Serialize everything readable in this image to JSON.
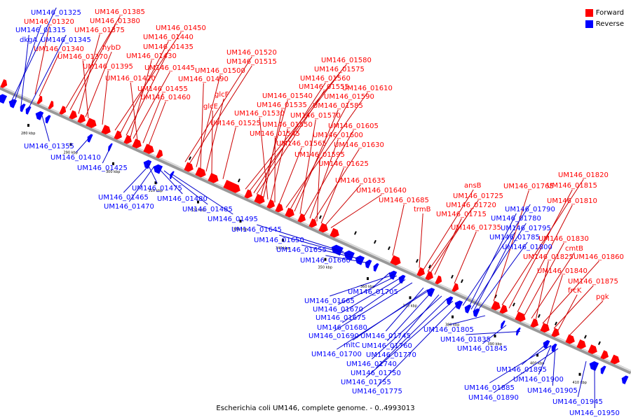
{
  "caption": "Escherichia coli UM146, complete genome. - 0..4993013",
  "legend": {
    "forward_label": "Forward",
    "reverse_label": "Reverse",
    "forward_color": "#ff0000",
    "reverse_color": "#0000ff"
  },
  "colors": {
    "forward_line": "#cc0000",
    "reverse_line": "#0000cc",
    "backbone": "#999999"
  },
  "axis": {
    "unit": "kbp",
    "ticks": [
      280,
      290,
      300,
      310,
      320,
      330,
      340,
      350,
      360,
      370,
      380,
      390,
      400,
      410
    ]
  },
  "forward_genes": [
    "UM146_01385",
    "UM146_01380",
    "UM146_01375",
    "hybD",
    "UM146_01370",
    "UM146_01395",
    "UM146_01450",
    "UM146_01440",
    "UM146_01435",
    "UM146_01430",
    "UM146_01445",
    "UM146_01420",
    "UM146_01455",
    "UM146_01460",
    "UM146_01520",
    "UM146_01515",
    "UM146_01500",
    "UM146_01490",
    "glcF",
    "glcE",
    "UM146_01525",
    "UM146_01580",
    "UM146_01575",
    "UM146_01560",
    "UM146_01555",
    "UM146_01540",
    "UM146_01535",
    "UM146_01530",
    "UM146_01550",
    "UM146_01545",
    "UM146_01565",
    "UM146_01610",
    "UM146_01590",
    "UM146_01585",
    "UM146_01570",
    "UM146_01605",
    "UM146_01600",
    "UM146_01630",
    "UM146_01595",
    "UM146_01625",
    "UM146_01635",
    "UM146_01640",
    "UM146_01685",
    "trmB",
    "ansB",
    "UM146_01725",
    "UM146_01720",
    "UM146_01715",
    "UM146_01735",
    "UM146_01765",
    "UM146_01820",
    "UM146_01815",
    "UM146_01810",
    "UM146_01830",
    "cmtB",
    "UM146_01825",
    "UM146_01860",
    "UM146_01840",
    "UM146_01875",
    "frcK",
    "pgk",
    "UM146_01340",
    "UM146_01320"
  ],
  "reverse_genes": [
    "UM146_01325",
    "UM146_01315",
    "dkgA",
    "UM146_01345",
    "UM146_01355",
    "UM146_01410",
    "UM146_01425",
    "UM146_01475",
    "UM146_01465",
    "UM146_01470",
    "UM146_01480",
    "UM146_01485",
    "UM146_01495",
    "UM146_01645",
    "UM146_01650",
    "UM146_01655",
    "UM146_01660",
    "UM146_01705",
    "UM146_01665",
    "UM146_01670",
    "UM146_01675",
    "UM146_01680",
    "UM146_01690",
    "UM146_01745",
    "mltC",
    "UM146_01760",
    "UM146_01700",
    "UM146_01770",
    "UM146_01740",
    "UM146_01750",
    "UM146_01755",
    "UM146_01775",
    "UM146_01790",
    "UM146_01780",
    "UM146_01795",
    "UM146_01785",
    "UM146_01800",
    "UM146_01805",
    "UM146_01835",
    "UM146_01845",
    "UM146_01895",
    "UM146_01900",
    "UM146_01885",
    "UM146_01905",
    "UM146_01890",
    "UM146_01945",
    "UM146_01950"
  ]
}
